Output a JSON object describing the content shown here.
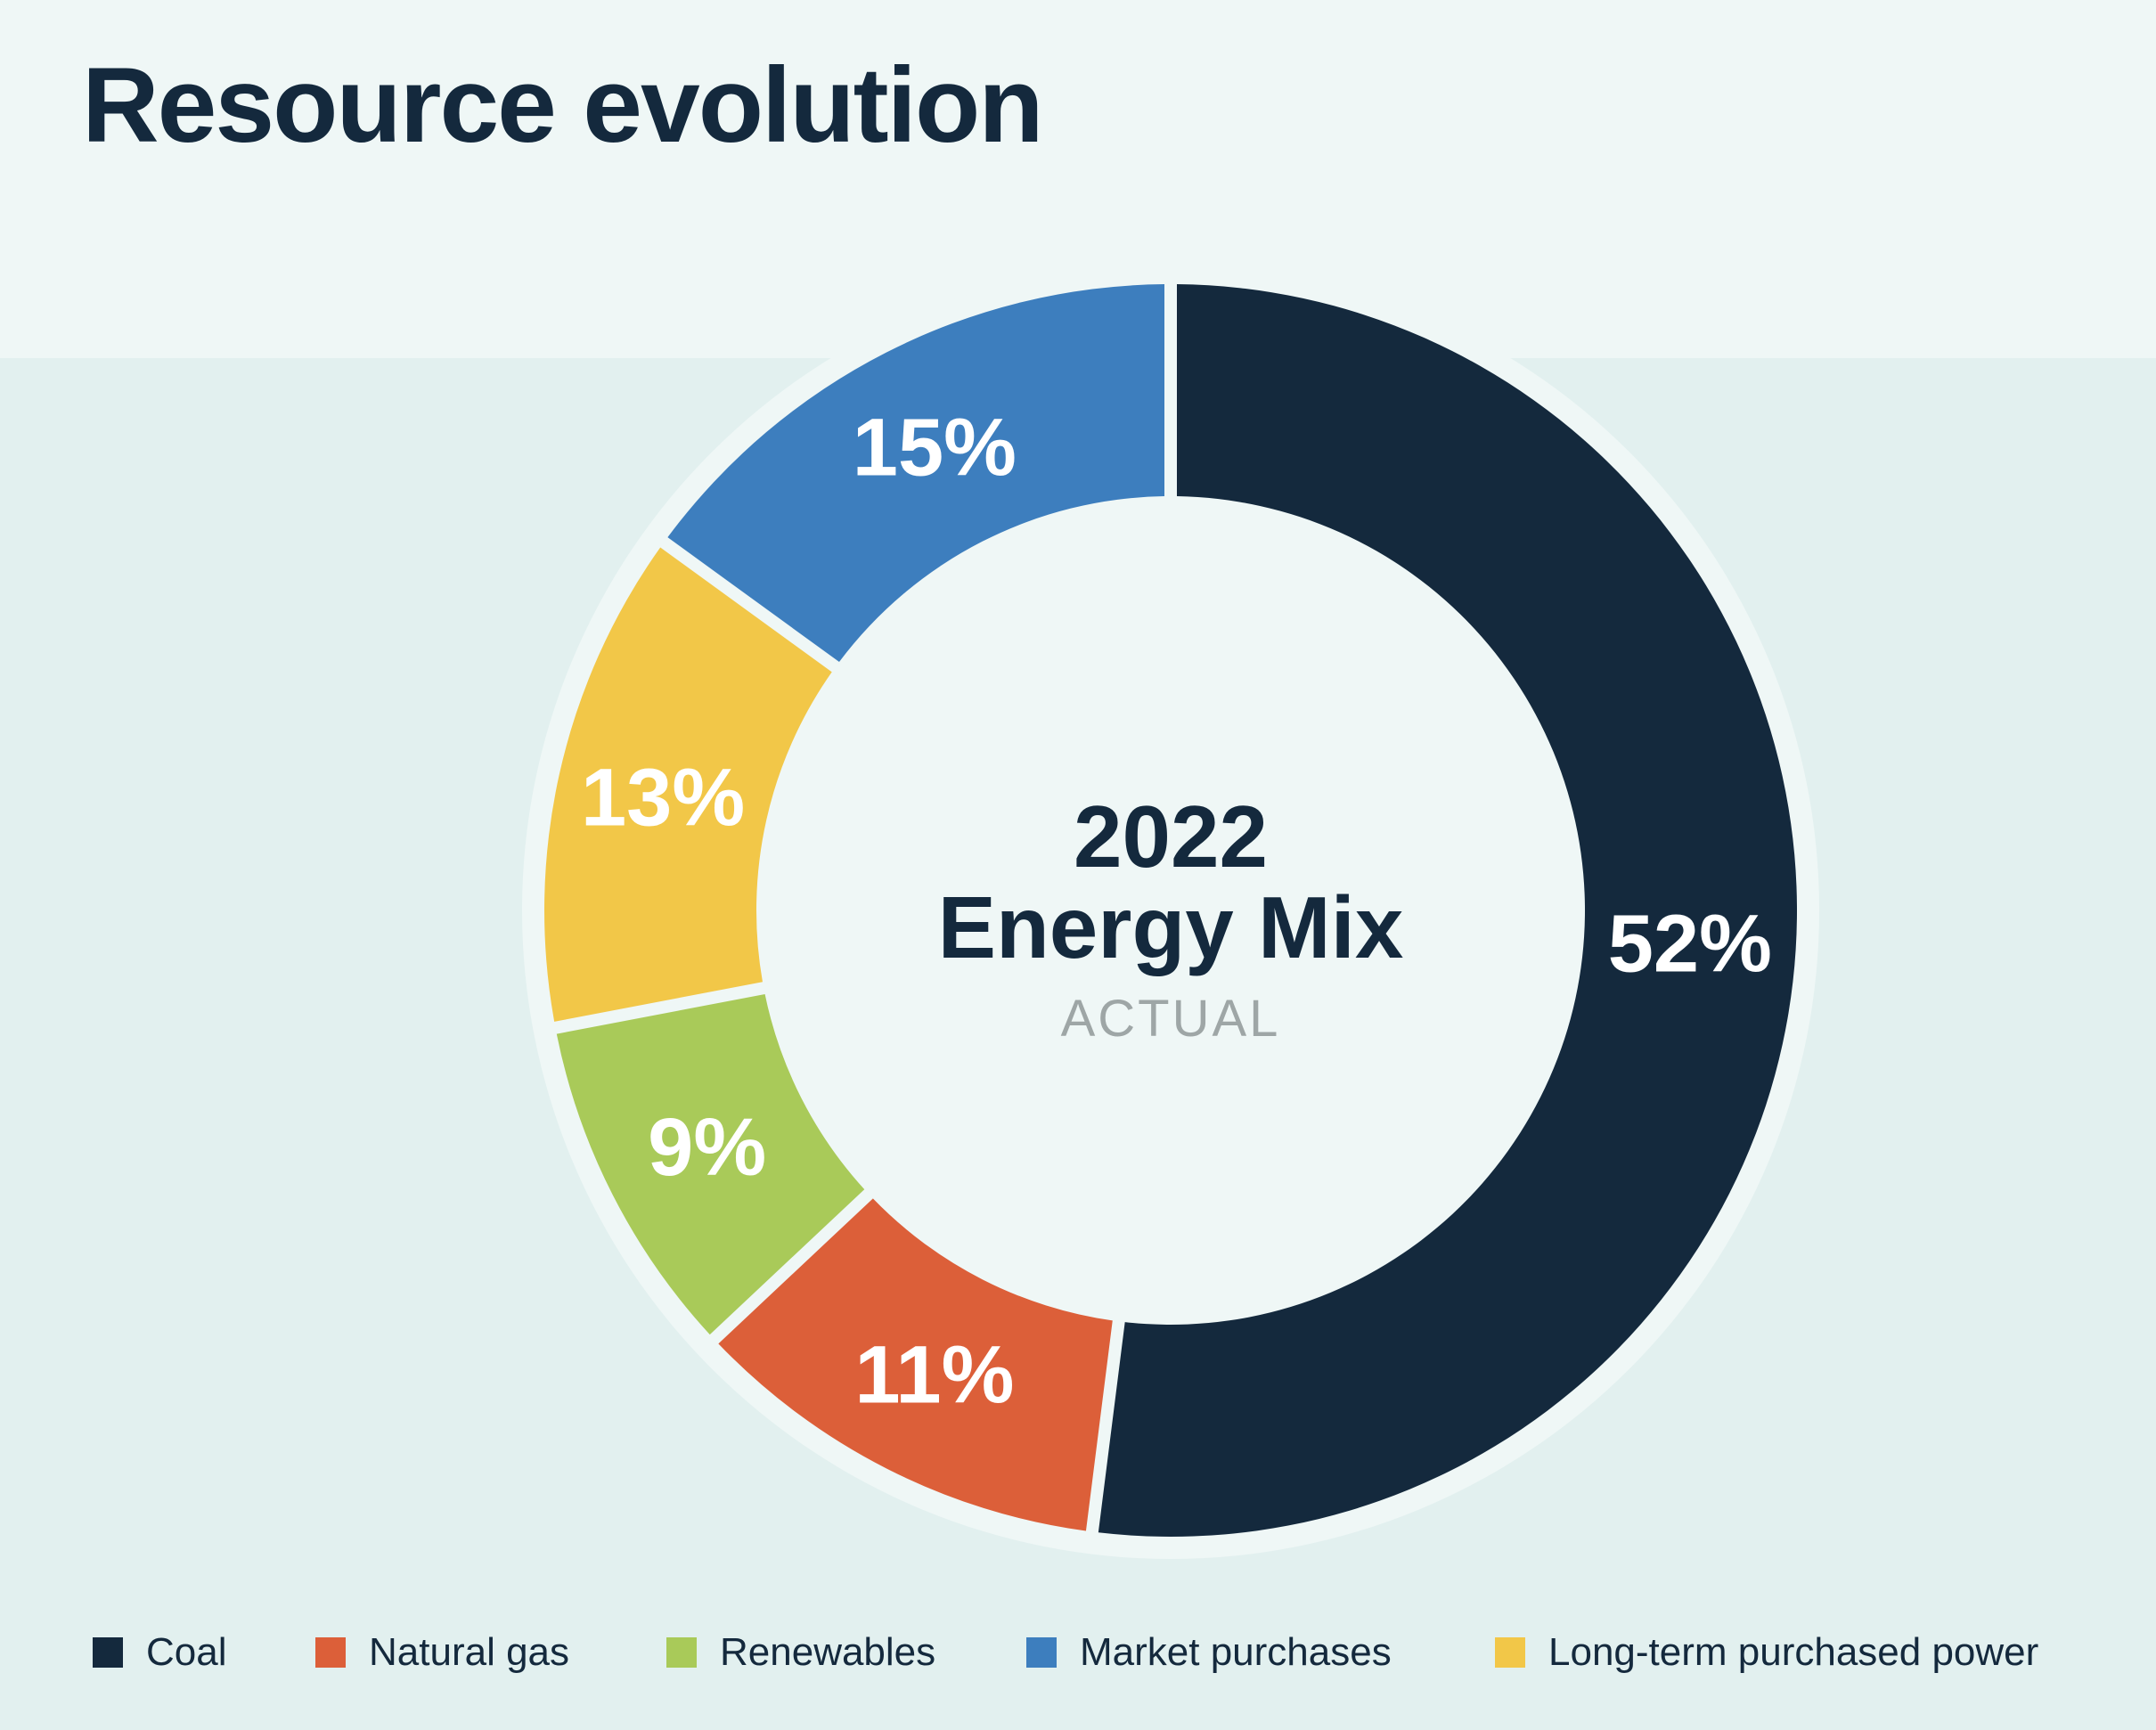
{
  "header": {
    "title": "Resource evolution"
  },
  "center": {
    "year": "2022",
    "label": "Energy Mix",
    "sublabel": "ACTUAL"
  },
  "colors": {
    "coal": "#14293d",
    "natural_gas": "#dc5f39",
    "renewables": "#a9ca59",
    "market_purchases": "#3d7ebe",
    "long_term_purchased_power": "#f2c748",
    "ring_background": "#eff7f6",
    "sublabel": "#9ea6a6"
  },
  "chart_data": {
    "type": "pie",
    "style": "donut",
    "title": "",
    "legend": "bottom",
    "slices": [
      {
        "name": "Coal",
        "value": 52,
        "label": "52%",
        "color": "#14293d"
      },
      {
        "name": "Natural gas",
        "value": 11,
        "label": "11%",
        "color": "#dc5f39"
      },
      {
        "name": "Renewables",
        "value": 9,
        "label": "9%",
        "color": "#a9ca59"
      },
      {
        "name": "Long-term purchased power",
        "value": 13,
        "label": "13%",
        "color": "#f2c748"
      },
      {
        "name": "Market purchases",
        "value": 15,
        "label": "15%",
        "color": "#3d7ebe"
      }
    ],
    "legend_order": [
      "Coal",
      "Natural gas",
      "Renewables",
      "Market purchases",
      "Long-term purchased power"
    ]
  }
}
